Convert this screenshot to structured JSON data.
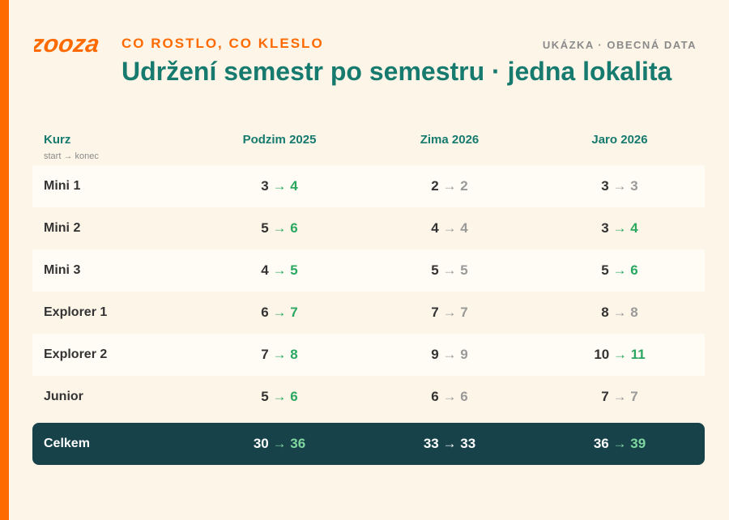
{
  "header": {
    "logo": "zooza",
    "eyebrow": "CO ROSTLO, CO KLESLO",
    "tag": "UKÁZKA · OBECNÁ DATA",
    "title": "Udržení semestr po semestru · jedna lokalita"
  },
  "table": {
    "first_column": "Kurz",
    "first_column_note": "start → konec",
    "arrow": "→",
    "columns": [
      "Podzim 2025",
      "Zima 2026",
      "Jaro 2026"
    ],
    "rows": [
      {
        "name": "Mini 1",
        "cells": [
          {
            "start": 3,
            "end": 4
          },
          {
            "start": 2,
            "end": 2
          },
          {
            "start": 3,
            "end": 3
          }
        ]
      },
      {
        "name": "Mini 2",
        "cells": [
          {
            "start": 5,
            "end": 6
          },
          {
            "start": 4,
            "end": 4
          },
          {
            "start": 3,
            "end": 4
          }
        ]
      },
      {
        "name": "Mini 3",
        "cells": [
          {
            "start": 4,
            "end": 5
          },
          {
            "start": 5,
            "end": 5
          },
          {
            "start": 5,
            "end": 6
          }
        ]
      },
      {
        "name": "Explorer 1",
        "cells": [
          {
            "start": 6,
            "end": 7
          },
          {
            "start": 7,
            "end": 7
          },
          {
            "start": 8,
            "end": 8
          }
        ]
      },
      {
        "name": "Explorer 2",
        "cells": [
          {
            "start": 7,
            "end": 8
          },
          {
            "start": 9,
            "end": 9
          },
          {
            "start": 10,
            "end": 11
          }
        ]
      },
      {
        "name": "Junior",
        "cells": [
          {
            "start": 5,
            "end": 6
          },
          {
            "start": 6,
            "end": 6
          },
          {
            "start": 7,
            "end": 7
          }
        ]
      }
    ],
    "total": {
      "name": "Celkem",
      "cells": [
        {
          "start": 30,
          "end": 36
        },
        {
          "start": 33,
          "end": 33
        },
        {
          "start": 36,
          "end": 39
        }
      ]
    }
  }
}
